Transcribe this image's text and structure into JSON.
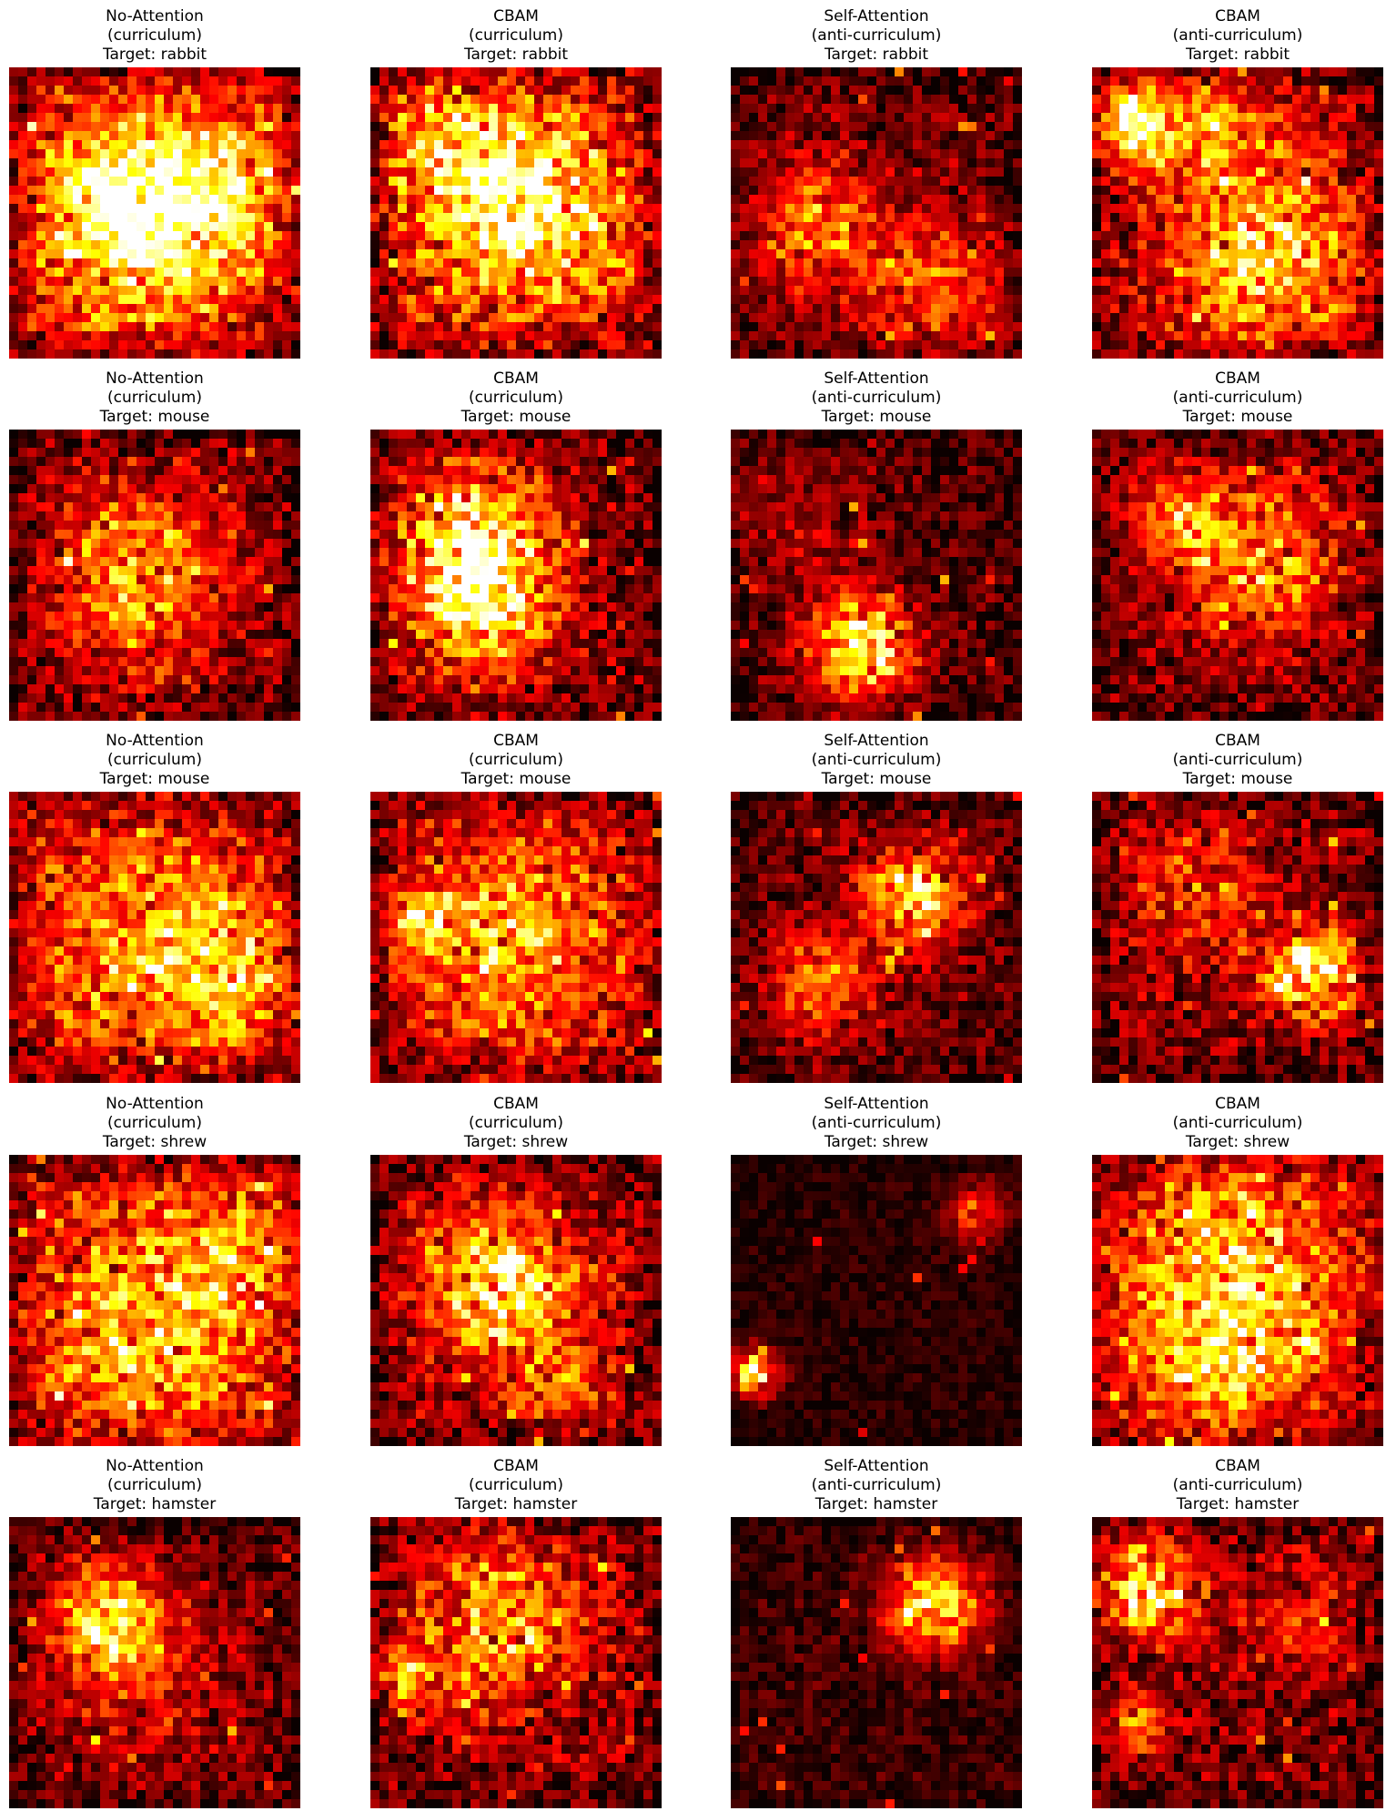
{
  "chart_data": {
    "type": "heatmap",
    "layout": {
      "rows": 5,
      "cols": 4
    },
    "grid_size": 32,
    "colormap": "hot",
    "axes": "off",
    "panels": [
      {
        "model": "No-Attention",
        "schedule": "(curriculum)",
        "target": "Target: rabbit",
        "hotspots": [
          [
            0.5,
            0.55,
            0.35,
            0.55
          ],
          [
            0.35,
            0.45,
            0.25,
            0.35
          ],
          [
            0.7,
            0.4,
            0.25,
            0.3
          ]
        ],
        "base": 0.3,
        "noise": 0.4,
        "seed": 11
      },
      {
        "model": "CBAM",
        "schedule": "(curriculum)",
        "target": "Target: rabbit",
        "hotspots": [
          [
            0.55,
            0.5,
            0.3,
            0.6
          ],
          [
            0.3,
            0.3,
            0.25,
            0.35
          ]
        ],
        "base": 0.33,
        "noise": 0.42,
        "seed": 12
      },
      {
        "model": "Self-Attention",
        "schedule": "(anti-curriculum)",
        "target": "Target: rabbit",
        "hotspots": [
          [
            0.3,
            0.55,
            0.22,
            0.45
          ],
          [
            0.7,
            0.75,
            0.25,
            0.35
          ]
        ],
        "base": 0.15,
        "noise": 0.32,
        "seed": 13
      },
      {
        "model": "CBAM",
        "schedule": "(anti-curriculum)",
        "target": "Target: rabbit",
        "hotspots": [
          [
            0.15,
            0.2,
            0.12,
            0.7
          ],
          [
            0.6,
            0.65,
            0.3,
            0.55
          ],
          [
            0.4,
            0.2,
            0.2,
            0.35
          ]
        ],
        "base": 0.25,
        "noise": 0.4,
        "seed": 14
      },
      {
        "model": "No-Attention",
        "schedule": "(curriculum)",
        "target": "Target: mouse",
        "hotspots": [
          [
            0.45,
            0.5,
            0.3,
            0.5
          ]
        ],
        "base": 0.18,
        "noise": 0.38,
        "seed": 21
      },
      {
        "model": "CBAM",
        "schedule": "(curriculum)",
        "target": "Target: mouse",
        "hotspots": [
          [
            0.35,
            0.4,
            0.28,
            0.65
          ],
          [
            0.4,
            0.65,
            0.25,
            0.4
          ]
        ],
        "base": 0.18,
        "noise": 0.4,
        "seed": 22
      },
      {
        "model": "Self-Attention",
        "schedule": "(anti-curriculum)",
        "target": "Target: mouse",
        "hotspots": [
          [
            0.45,
            0.75,
            0.18,
            0.75
          ],
          [
            0.2,
            0.3,
            0.25,
            0.15
          ]
        ],
        "base": 0.12,
        "noise": 0.3,
        "seed": 23
      },
      {
        "model": "CBAM",
        "schedule": "(anti-curriculum)",
        "target": "Target: mouse",
        "hotspots": [
          [
            0.55,
            0.45,
            0.3,
            0.5
          ],
          [
            0.3,
            0.3,
            0.15,
            0.35
          ]
        ],
        "base": 0.15,
        "noise": 0.36,
        "seed": 24
      },
      {
        "model": "No-Attention",
        "schedule": "(curriculum)",
        "target": "Target: mouse",
        "hotspots": [
          [
            0.5,
            0.5,
            0.4,
            0.4
          ],
          [
            0.75,
            0.65,
            0.2,
            0.3
          ]
        ],
        "base": 0.28,
        "noise": 0.4,
        "seed": 31
      },
      {
        "model": "CBAM",
        "schedule": "(curriculum)",
        "target": "Target: mouse",
        "hotspots": [
          [
            0.5,
            0.5,
            0.35,
            0.45
          ],
          [
            0.15,
            0.45,
            0.1,
            0.45
          ]
        ],
        "base": 0.26,
        "noise": 0.4,
        "seed": 32
      },
      {
        "model": "Self-Attention",
        "schedule": "(anti-curriculum)",
        "target": "Target: mouse",
        "hotspots": [
          [
            0.62,
            0.35,
            0.18,
            0.65
          ],
          [
            0.3,
            0.65,
            0.18,
            0.45
          ]
        ],
        "base": 0.14,
        "noise": 0.32,
        "seed": 33
      },
      {
        "model": "CBAM",
        "schedule": "(anti-curriculum)",
        "target": "Target: mouse",
        "hotspots": [
          [
            0.75,
            0.62,
            0.15,
            0.75
          ],
          [
            0.35,
            0.35,
            0.25,
            0.3
          ]
        ],
        "base": 0.18,
        "noise": 0.36,
        "seed": 34
      },
      {
        "model": "No-Attention",
        "schedule": "(curriculum)",
        "target": "Target: shrew",
        "hotspots": [
          [
            0.5,
            0.6,
            0.4,
            0.45
          ],
          [
            0.8,
            0.3,
            0.2,
            0.3
          ]
        ],
        "base": 0.28,
        "noise": 0.4,
        "seed": 41
      },
      {
        "model": "CBAM",
        "schedule": "(curriculum)",
        "target": "Target: shrew",
        "hotspots": [
          [
            0.45,
            0.45,
            0.25,
            0.7
          ],
          [
            0.65,
            0.8,
            0.15,
            0.3
          ]
        ],
        "base": 0.22,
        "noise": 0.4,
        "seed": 42
      },
      {
        "model": "Self-Attention",
        "schedule": "(anti-curriculum)",
        "target": "Target: shrew",
        "hotspots": [
          [
            0.08,
            0.75,
            0.08,
            0.85
          ],
          [
            0.85,
            0.2,
            0.1,
            0.45
          ]
        ],
        "base": 0.05,
        "noise": 0.14,
        "seed": 43
      },
      {
        "model": "CBAM",
        "schedule": "(anti-curriculum)",
        "target": "Target: shrew",
        "hotspots": [
          [
            0.5,
            0.4,
            0.4,
            0.45
          ],
          [
            0.4,
            0.7,
            0.3,
            0.3
          ]
        ],
        "base": 0.26,
        "noise": 0.4,
        "seed": 44
      },
      {
        "model": "No-Attention",
        "schedule": "(curriculum)",
        "target": "Target: hamster",
        "hotspots": [
          [
            0.35,
            0.35,
            0.18,
            0.7
          ],
          [
            0.45,
            0.6,
            0.3,
            0.2
          ]
        ],
        "base": 0.15,
        "noise": 0.32,
        "seed": 51
      },
      {
        "model": "CBAM",
        "schedule": "(curriculum)",
        "target": "Target: hamster",
        "hotspots": [
          [
            0.45,
            0.35,
            0.3,
            0.5
          ],
          [
            0.12,
            0.55,
            0.1,
            0.45
          ]
        ],
        "base": 0.18,
        "noise": 0.4,
        "seed": 52
      },
      {
        "model": "Self-Attention",
        "schedule": "(anti-curriculum)",
        "target": "Target: hamster",
        "hotspots": [
          [
            0.7,
            0.3,
            0.16,
            0.8
          ]
        ],
        "base": 0.08,
        "noise": 0.2,
        "seed": 53
      },
      {
        "model": "CBAM",
        "schedule": "(anti-curriculum)",
        "target": "Target: hamster",
        "hotspots": [
          [
            0.2,
            0.25,
            0.18,
            0.65
          ],
          [
            0.15,
            0.7,
            0.12,
            0.4
          ],
          [
            0.7,
            0.35,
            0.2,
            0.25
          ]
        ],
        "base": 0.16,
        "noise": 0.36,
        "seed": 54
      }
    ]
  }
}
